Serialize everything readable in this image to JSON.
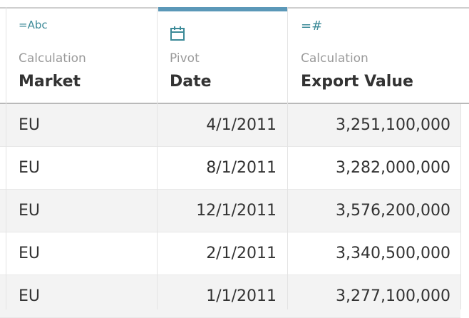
{
  "columns": [
    {
      "type_icon": "=Abc",
      "icon_name": "abc-calculation-icon",
      "kind": "Calculation",
      "name": "Market"
    },
    {
      "type_icon": "calendar",
      "icon_name": "calendar-icon",
      "kind": "Pivot",
      "name": "Date"
    },
    {
      "type_icon": "=#",
      "icon_name": "number-calculation-icon",
      "kind": "Calculation",
      "name": "Export Value"
    }
  ],
  "rows": [
    {
      "market": "EU",
      "date": "4/1/2011",
      "export_value": "3,251,100,000"
    },
    {
      "market": "EU",
      "date": "8/1/2011",
      "export_value": "3,282,000,000"
    },
    {
      "market": "EU",
      "date": "12/1/2011",
      "export_value": "3,576,200,000"
    },
    {
      "market": "EU",
      "date": "2/1/2011",
      "export_value": "3,340,500,000"
    },
    {
      "market": "EU",
      "date": "1/1/2011",
      "export_value": "3,277,100,000"
    }
  ],
  "colors": {
    "selection": "#5b98b8",
    "icon": "#3c8a98",
    "text": "#333333",
    "muted": "#9a9a9a"
  }
}
